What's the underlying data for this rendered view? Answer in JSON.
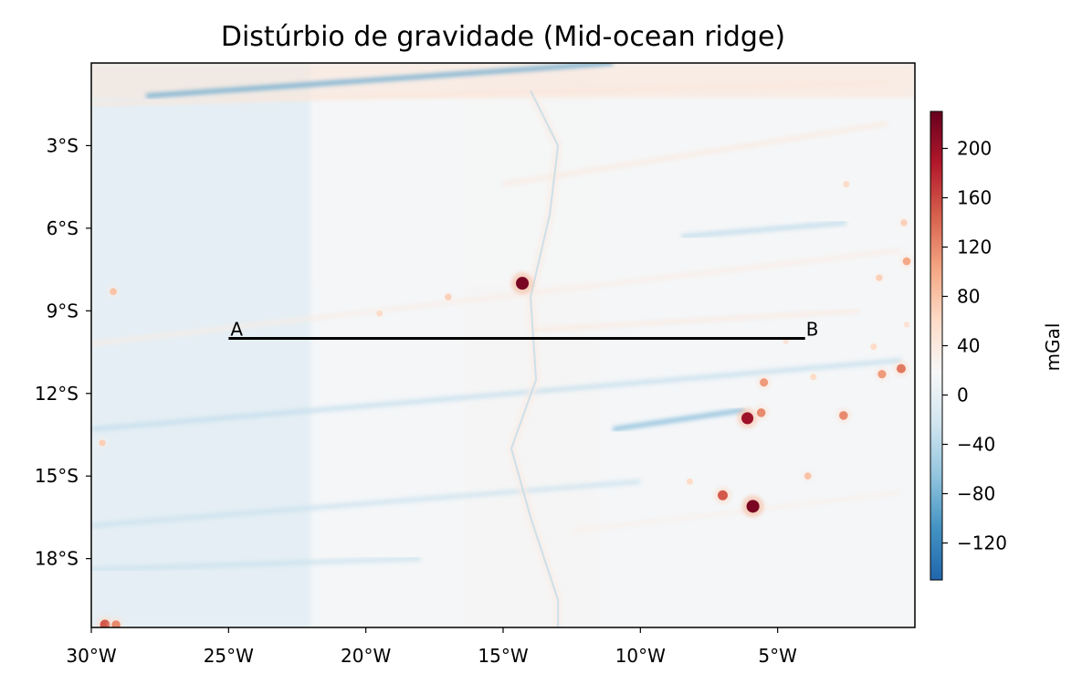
{
  "title": "Distúrbio de gravidade (Mid-ocean ridge)",
  "map": {
    "lon_range": [
      -30,
      0
    ],
    "lat_range": [
      -20.5,
      0
    ],
    "lon_ticks": [
      {
        "value": -30,
        "label": "30°W"
      },
      {
        "value": -25,
        "label": "25°W"
      },
      {
        "value": -20,
        "label": "20°W"
      },
      {
        "value": -15,
        "label": "15°W"
      },
      {
        "value": -10,
        "label": "10°W"
      },
      {
        "value": -5,
        "label": "5°W"
      }
    ],
    "lat_ticks": [
      {
        "value": -3,
        "label": "3°S"
      },
      {
        "value": -6,
        "label": "6°S"
      },
      {
        "value": -9,
        "label": "9°S"
      },
      {
        "value": -12,
        "label": "12°S"
      },
      {
        "value": -15,
        "label": "15°S"
      },
      {
        "value": -18,
        "label": "18°S"
      }
    ],
    "profile": {
      "start": {
        "lon": -25,
        "lat": -10,
        "label": "A"
      },
      "end": {
        "lon": -4,
        "lat": -10,
        "label": "B"
      }
    },
    "colormap": "RdBu_r"
  },
  "colorbar": {
    "label": "mGal",
    "range": [
      -150,
      230
    ],
    "ticks": [
      {
        "value": 200,
        "label": "200"
      },
      {
        "value": 160,
        "label": "160"
      },
      {
        "value": 120,
        "label": "120"
      },
      {
        "value": 80,
        "label": "80"
      },
      {
        "value": 40,
        "label": "40"
      },
      {
        "value": 0,
        "label": "0"
      },
      {
        "value": -40,
        "label": "−40"
      },
      {
        "value": -80,
        "label": "−80"
      },
      {
        "value": -120,
        "label": "−120"
      }
    ],
    "colors": [
      "#2166ac",
      "#4393c3",
      "#92c5de",
      "#d1e5f0",
      "#f7f7f7",
      "#fddbc7",
      "#f4a582",
      "#d6604d",
      "#b2182b",
      "#67001f"
    ]
  },
  "features": {
    "seamounts": [
      {
        "lon": -14.3,
        "lat": -8.0,
        "value": 220
      },
      {
        "lon": -5.9,
        "lat": -16.1,
        "value": 220
      },
      {
        "lon": -6.1,
        "lat": -12.9,
        "value": 200
      },
      {
        "lon": -7.0,
        "lat": -15.7,
        "value": 150
      },
      {
        "lon": -5.6,
        "lat": -12.7,
        "value": 120
      },
      {
        "lon": -5.5,
        "lat": -11.6,
        "value": 110
      },
      {
        "lon": -2.6,
        "lat": -12.8,
        "value": 120
      },
      {
        "lon": -0.5,
        "lat": -11.1,
        "value": 130
      },
      {
        "lon": -1.2,
        "lat": -11.3,
        "value": 110
      },
      {
        "lon": -0.3,
        "lat": -7.2,
        "value": 100
      },
      {
        "lon": -29.5,
        "lat": -20.4,
        "value": 150
      },
      {
        "lon": -29.1,
        "lat": -20.4,
        "value": 120
      },
      {
        "lon": -29.2,
        "lat": -8.3,
        "value": 80
      },
      {
        "lon": -29.6,
        "lat": -13.8,
        "value": 70
      },
      {
        "lon": -17.0,
        "lat": -8.5,
        "value": 70
      },
      {
        "lon": -19.5,
        "lat": -9.1,
        "value": 60
      },
      {
        "lon": -3.9,
        "lat": -15.0,
        "value": 80
      },
      {
        "lon": -8.2,
        "lat": -15.2,
        "value": 60
      },
      {
        "lon": -1.3,
        "lat": -7.8,
        "value": 70
      },
      {
        "lon": -0.4,
        "lat": -5.8,
        "value": 70
      },
      {
        "lon": -2.5,
        "lat": -4.4,
        "value": 60
      },
      {
        "lon": -3.7,
        "lat": -11.4,
        "value": 60
      },
      {
        "lon": -4.7,
        "lat": -10.1,
        "value": 50
      },
      {
        "lon": -1.5,
        "lat": -10.3,
        "value": 60
      },
      {
        "lon": -0.3,
        "lat": -9.5,
        "value": 50
      }
    ],
    "ridge_axis": [
      [
        -14.0,
        -1.0
      ],
      [
        -13.0,
        -3.0
      ],
      [
        -13.3,
        -5.5
      ],
      [
        -14.0,
        -8.5
      ],
      [
        -13.8,
        -11.5
      ],
      [
        -14.7,
        -14.0
      ],
      [
        -14.0,
        -16.5
      ],
      [
        -13.0,
        -19.5
      ],
      [
        -13.0,
        -20.5
      ]
    ],
    "fracture_zones": [
      {
        "from": [
          -28.0,
          -1.2
        ],
        "to": [
          -11.0,
          0.0
        ],
        "value": -95
      },
      {
        "from": [
          -30.0,
          -1.5
        ],
        "to": [
          -1.0,
          -0.7
        ],
        "value": 45
      },
      {
        "from": [
          -30.0,
          -10.2
        ],
        "to": [
          -0.5,
          -6.8
        ],
        "value": 35
      },
      {
        "from": [
          -30.0,
          -13.3
        ],
        "to": [
          -0.5,
          -10.8
        ],
        "value": -35
      },
      {
        "from": [
          -30.0,
          -16.8
        ],
        "to": [
          -10.0,
          -15.2
        ],
        "value": -30
      },
      {
        "from": [
          -11.0,
          -13.3
        ],
        "to": [
          -6.2,
          -12.6
        ],
        "value": -80
      },
      {
        "from": [
          -8.5,
          -6.3
        ],
        "to": [
          -2.5,
          -5.8
        ],
        "value": -40
      },
      {
        "from": [
          -14.0,
          -9.7
        ],
        "to": [
          -2.0,
          -9.0
        ],
        "value": 40
      },
      {
        "from": [
          -15.0,
          -4.4
        ],
        "to": [
          -1.0,
          -2.2
        ],
        "value": 40
      },
      {
        "from": [
          -30.0,
          -18.4
        ],
        "to": [
          -18.0,
          -18.0
        ],
        "value": -30
      },
      {
        "from": [
          -12.5,
          -17.0
        ],
        "to": [
          -0.5,
          -15.6
        ],
        "value": 30
      }
    ]
  }
}
